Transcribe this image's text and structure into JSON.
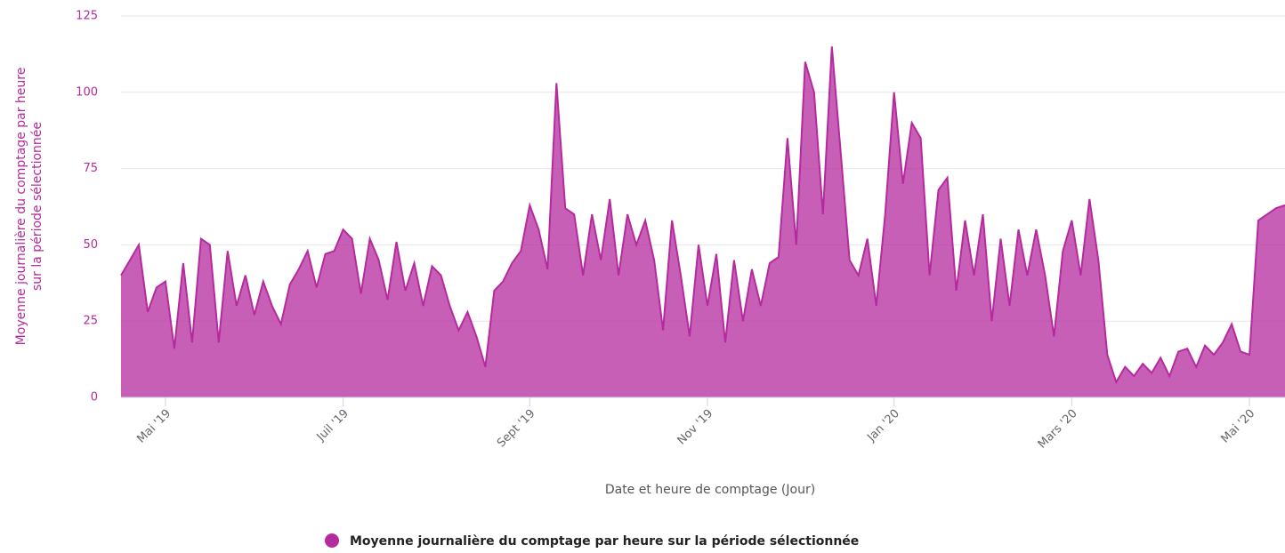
{
  "chart_data": {
    "type": "area",
    "y_label": [
      "Moyenne journalière du comptage par heure",
      "sur la période sélectionnée"
    ],
    "x_label": "Date et heure de comptage (Jour)",
    "categories": [
      null,
      null,
      null,
      null,
      null,
      "Mai '19",
      null,
      null,
      null,
      null,
      null,
      null,
      null,
      null,
      null,
      null,
      null,
      null,
      null,
      null,
      null,
      null,
      null,
      null,
      null,
      "Juil '19",
      null,
      null,
      null,
      null,
      null,
      null,
      null,
      null,
      null,
      null,
      null,
      null,
      null,
      null,
      null,
      null,
      null,
      null,
      null,
      null,
      "Sept '19",
      null,
      null,
      null,
      null,
      null,
      null,
      null,
      null,
      null,
      null,
      null,
      null,
      null,
      null,
      null,
      null,
      null,
      null,
      null,
      "Nov '19",
      null,
      null,
      null,
      null,
      null,
      null,
      null,
      null,
      null,
      null,
      null,
      null,
      null,
      null,
      null,
      null,
      null,
      null,
      null,
      null,
      "Jan '20",
      null,
      null,
      null,
      null,
      null,
      null,
      null,
      null,
      null,
      null,
      null,
      null,
      null,
      null,
      null,
      null,
      null,
      null,
      null,
      "Mars '20",
      null,
      null,
      null,
      null,
      null,
      null,
      null,
      null,
      null,
      null,
      null,
      null,
      null,
      null,
      null,
      null,
      null,
      null,
      null,
      "Mai '20",
      null,
      null,
      null,
      null
    ],
    "series": [
      {
        "name": "Moyenne journalière du comptage par heure sur la période sélectionnée",
        "color": "#b52a9d",
        "values": [
          40,
          45,
          50,
          28,
          36,
          38,
          16,
          44,
          18,
          52,
          50,
          18,
          48,
          30,
          40,
          27,
          38,
          30,
          24,
          37,
          42,
          48,
          36,
          47,
          48,
          55,
          52,
          34,
          52,
          45,
          32,
          51,
          35,
          44,
          30,
          43,
          40,
          30,
          22,
          28,
          20,
          10,
          35,
          38,
          44,
          48,
          63,
          55,
          42,
          103,
          62,
          60,
          40,
          60,
          45,
          65,
          40,
          60,
          50,
          58,
          45,
          22,
          58,
          40,
          20,
          50,
          30,
          47,
          18,
          45,
          25,
          42,
          30,
          44,
          46,
          85,
          50,
          110,
          100,
          60,
          115,
          80,
          45,
          40,
          52,
          30,
          60,
          100,
          70,
          90,
          85,
          40,
          68,
          72,
          35,
          58,
          40,
          60,
          25,
          52,
          30,
          55,
          40,
          55,
          40,
          20,
          48,
          58,
          40,
          65,
          45,
          14,
          5,
          10,
          7,
          11,
          8,
          13,
          7,
          15,
          16,
          10,
          17,
          14,
          18,
          24,
          15,
          14,
          58,
          60,
          62,
          63
        ]
      }
    ],
    "ylim": [
      0,
      125
    ],
    "yticks": [
      0,
      25,
      50,
      75,
      100,
      125
    ],
    "grid": true,
    "legend": "bottom"
  }
}
